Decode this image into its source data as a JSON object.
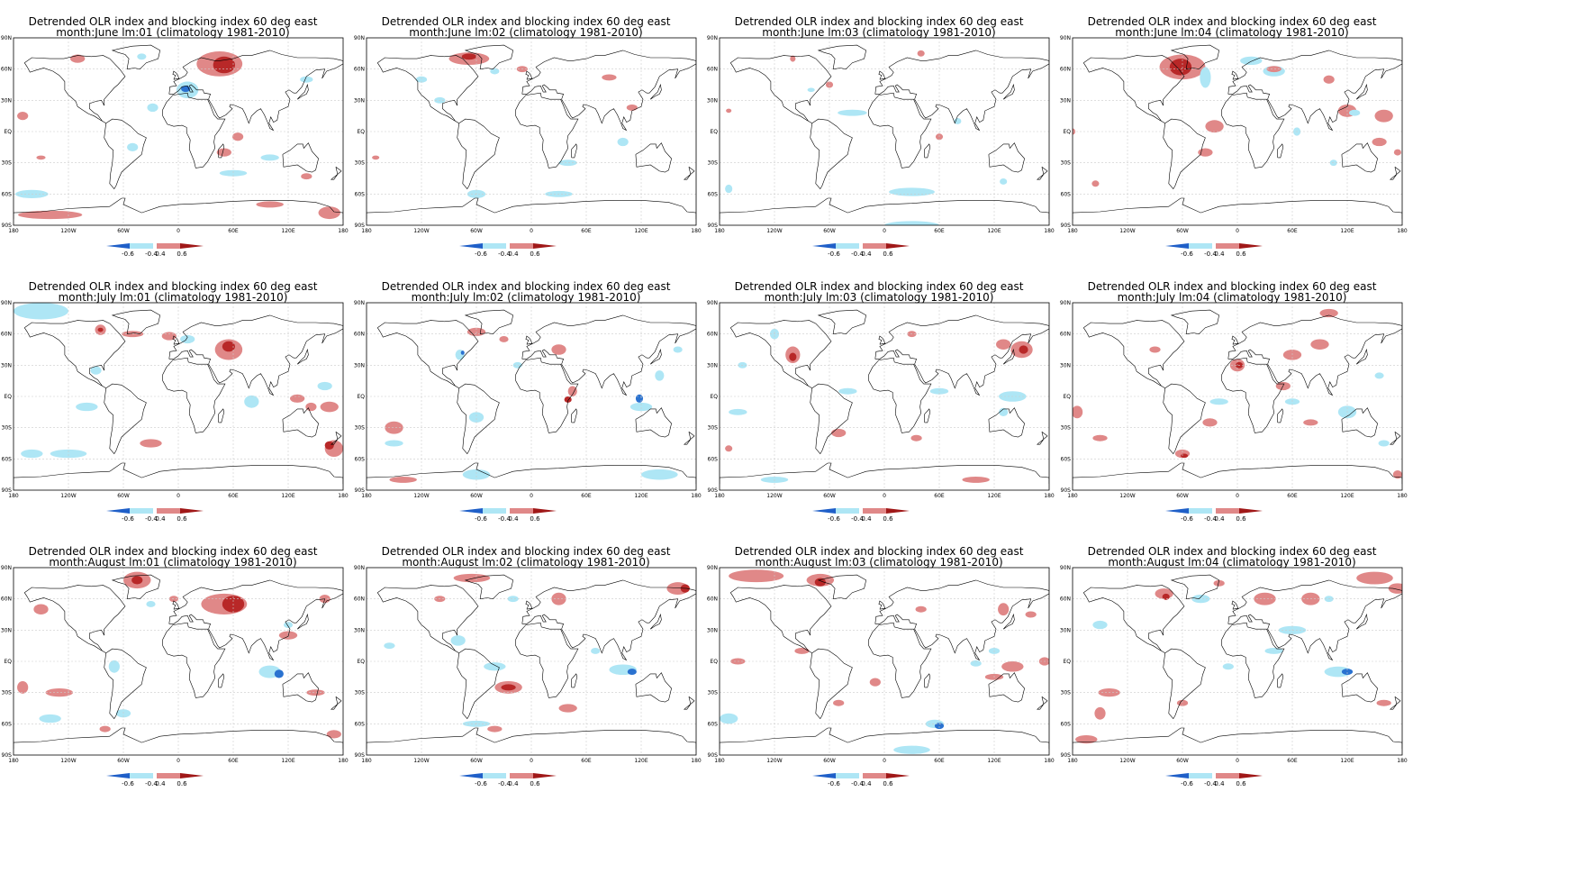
{
  "panels": [
    {
      "title1": "Detrended OLR index and blocking index 60 deg east",
      "title2": "month:June lm:01 (climatology 1981-2010)"
    },
    {
      "title1": "Detrended OLR index and blocking index 60 deg east",
      "title2": "month:June lm:02 (climatology 1981-2010)"
    },
    {
      "title1": "Detrended OLR index and blocking index 60 deg east",
      "title2": "month:June lm:03 (climatology 1981-2010)"
    },
    {
      "title1": "Detrended OLR index and blocking index 60 deg east",
      "title2": "month:June lm:04 (climatology 1981-2010)"
    },
    {
      "title1": "Detrended OLR index and blocking index 60 deg east",
      "title2": "month:July lm:01 (climatology 1981-2010)"
    },
    {
      "title1": "Detrended OLR index and blocking index 60 deg east",
      "title2": "month:July lm:02 (climatology 1981-2010)"
    },
    {
      "title1": "Detrended OLR index and blocking index 60 deg east",
      "title2": "month:July lm:03 (climatology 1981-2010)"
    },
    {
      "title1": "Detrended OLR index and blocking index 60 deg east",
      "title2": "month:July lm:04 (climatology 1981-2010)"
    },
    {
      "title1": "Detrended OLR index and blocking index 60 deg east",
      "title2": "month:August lm:01 (climatology 1981-2010)"
    },
    {
      "title1": "Detrended OLR index and blocking index 60 deg east",
      "title2": "month:August lm:02 (climatology 1981-2010)"
    },
    {
      "title1": "Detrended OLR index and blocking index 60 deg east",
      "title2": "month:August lm:03 (climatology 1981-2010)"
    },
    {
      "title1": "Detrended OLR index and blocking index 60 deg east",
      "title2": "month:August lm:04 (climatology 1981-2010)"
    }
  ],
  "axes": {
    "lat_labels": [
      "90N",
      "60N",
      "30N",
      "EQ",
      "30S",
      "60S",
      "90S"
    ],
    "lon_labels": [
      "180",
      "120W",
      "60W",
      "0",
      "60E",
      "120E",
      "180"
    ]
  },
  "colorbar": {
    "labels": [
      "-0.6",
      "-0.4",
      "0.4",
      "0.6"
    ],
    "colors": [
      "#1f5fc8",
      "#7fb8ec",
      "#aee6f5",
      "#e08888",
      "#c44a4a",
      "#a01818"
    ]
  },
  "style": {
    "positive_light": "#e08888",
    "positive_dark": "#b82828",
    "negative_light": "#aee6f5",
    "negative_dark": "#2a72d0"
  }
}
